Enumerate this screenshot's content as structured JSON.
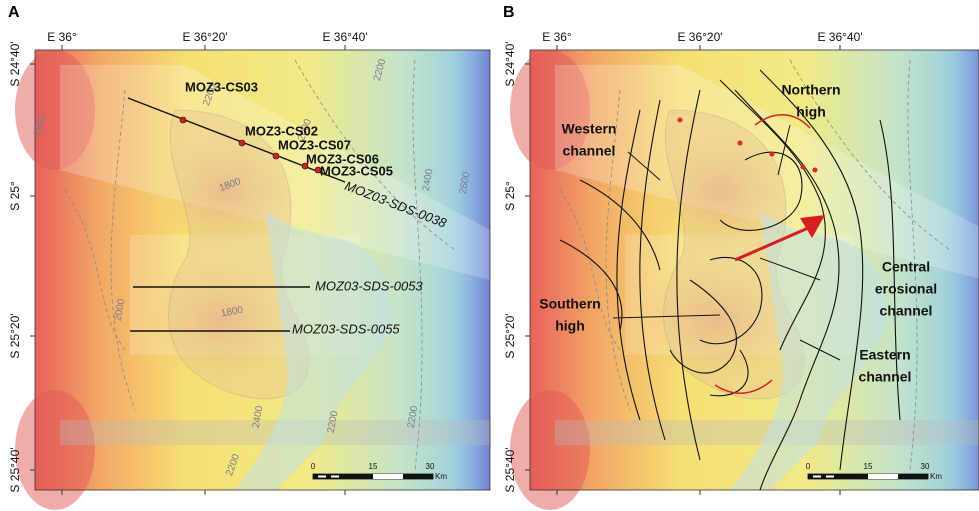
{
  "panels": [
    {
      "label": "A",
      "x_labels": [
        "E 36°",
        "E 36°20'",
        "E 36°40'"
      ],
      "y_labels": [
        "S 24°40'",
        "S 25°",
        "S 25°20'",
        "S 25°40'"
      ],
      "contours": [
        "2200",
        "2200",
        "1800",
        "2000",
        "1800",
        "2400",
        "2600",
        "2000",
        "1800",
        "2400",
        "2200",
        "2200",
        "2200"
      ],
      "stations": [
        "MOZ3-CS03",
        "MOZ3-CS02",
        "MOZ3-CS07",
        "MOZ3-CS06",
        "MOZ3-CS05"
      ],
      "profiles": [
        "MOZ03-SDS-0038",
        "MOZ03-SDS-0053",
        "MOZ03-SDS-0055"
      ],
      "scale": {
        "ticks": [
          "0",
          "15",
          "30"
        ],
        "unit": "Km"
      }
    },
    {
      "label": "B",
      "x_labels": [
        "E 36°",
        "E 36°20'",
        "E 36°40'"
      ],
      "y_labels": [
        "S 24°40'",
        "S 25°",
        "S 25°20'",
        "S 25°40'"
      ],
      "features": [
        [
          "Northern",
          "high"
        ],
        [
          "Western",
          "channel"
        ],
        [
          "Central",
          "erosional",
          "channel"
        ],
        [
          "Southern",
          "high"
        ],
        [
          "Eastern",
          "channel"
        ]
      ],
      "scale": {
        "ticks": [
          "0",
          "15",
          "30"
        ],
        "unit": "Km"
      }
    }
  ]
}
